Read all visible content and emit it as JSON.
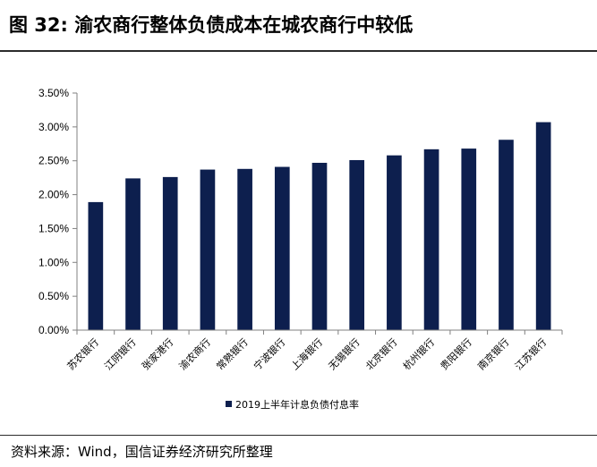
{
  "figure": {
    "title": "图 32:  渝农商行整体负债成本在城农商行中较低",
    "source": "资料来源：Wind，国信证券经济研究所整理"
  },
  "colors": {
    "bar": "#0d1f4e",
    "axis": "#808080"
  },
  "chart_data": {
    "type": "bar",
    "categories": [
      "苏农银行",
      "江阴银行",
      "张家港行",
      "渝农商行",
      "常熟银行",
      "宁波银行",
      "上海银行",
      "无锡银行",
      "北京银行",
      "杭州银行",
      "贵阳银行",
      "南京银行",
      "江苏银行"
    ],
    "series": [
      {
        "name": "2019上半年计息负债付息率",
        "values": [
          0.0189,
          0.0224,
          0.0226,
          0.0237,
          0.0238,
          0.0241,
          0.0247,
          0.0251,
          0.0258,
          0.0267,
          0.0268,
          0.0281,
          0.0307
        ]
      }
    ],
    "yticks": [
      "0.00%",
      "0.50%",
      "1.00%",
      "1.50%",
      "2.00%",
      "2.50%",
      "3.00%",
      "3.50%"
    ],
    "ylim": [
      0,
      0.035
    ],
    "legend_position": "bottom",
    "grid": false
  }
}
